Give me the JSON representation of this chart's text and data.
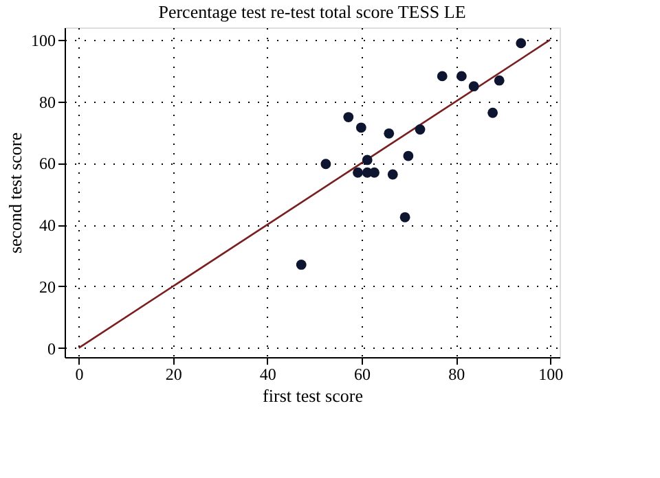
{
  "chart_data": {
    "type": "scatter",
    "title": "Percentage test re-test total score TESS LE",
    "xlabel": "first test score",
    "ylabel": "second test score",
    "xlim": [
      -3,
      102
    ],
    "ylim": [
      -3,
      104
    ],
    "xticks": [
      0,
      20,
      40,
      60,
      80,
      100
    ],
    "yticks": [
      0,
      20,
      40,
      60,
      80,
      100
    ],
    "grid": true,
    "marker": "circle",
    "series": [
      {
        "color": "#0d1530",
        "x": [
          93.8,
          77.1,
          81.2,
          83.8,
          89.2,
          87.8,
          57.2,
          59.9,
          65.8,
          72.4,
          52.4,
          61.2,
          69.9,
          59.2,
          61.2,
          62.7,
          66.6,
          69.2,
          47.2
        ],
        "values": [
          98.9,
          88.2,
          88.2,
          84.9,
          86.8,
          76.3,
          74.9,
          71.5,
          69.6,
          70.9,
          59.7,
          61.0,
          62.3,
          56.9,
          56.9,
          56.9,
          56.3,
          42.4,
          27.0
        ]
      },
      {
        "type": "line",
        "color": "#7a1f1f",
        "x": [
          0,
          100
        ],
        "values": [
          0,
          100
        ],
        "line_style": "solid",
        "marker": "none"
      }
    ]
  }
}
